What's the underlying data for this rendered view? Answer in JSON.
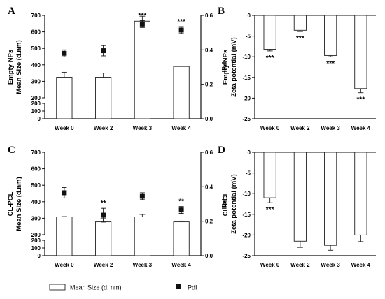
{
  "chart_data": [
    {
      "panel": "A",
      "type": "bar",
      "categories": [
        "Week 0",
        "Week 2",
        "Week 3",
        "Week 4"
      ],
      "ylabel": [
        "Empty NPs",
        "Mean Size (d.nm)"
      ],
      "y2label": "PdI",
      "yticks": [
        0,
        100,
        200,
        300,
        400,
        500,
        600,
        700
      ],
      "y2ticks": [
        0.0,
        0.2,
        0.4,
        0.6
      ],
      "y2lim": [
        0,
        0.6
      ],
      "bars": {
        "name": "Mean Size (d. nm)",
        "values": [
          325,
          325,
          665,
          390
        ],
        "errors": [
          30,
          25,
          30,
          0
        ]
      },
      "markers": {
        "name": "PdI",
        "values": [
          0.38,
          0.395,
          0.55,
          0.515
        ],
        "errors": [
          0.02,
          0.03,
          0.02,
          0.02
        ]
      },
      "annotations": [
        "",
        "",
        "***",
        "***"
      ]
    },
    {
      "panel": "B",
      "type": "bar",
      "categories": [
        "Week 0",
        "Week 2",
        "Week 3",
        "Week 4"
      ],
      "ylabel": [
        "Empty NPs",
        "Zeta potential (mV)"
      ],
      "yticks": [
        0,
        -5,
        -10,
        -15,
        -20,
        -25
      ],
      "ylim": [
        -25,
        0
      ],
      "values": [
        -8.2,
        -3.6,
        -9.7,
        -17.7
      ],
      "errors": [
        0.4,
        0.3,
        0.3,
        1.0
      ],
      "annotations": [
        "***",
        "***",
        "***",
        "***"
      ]
    },
    {
      "panel": "C",
      "type": "bar",
      "categories": [
        "Week 0",
        "Week 2",
        "Week 3",
        "Week 4"
      ],
      "ylabel": [
        "CL-PCL",
        "Mean Size (d.nm)"
      ],
      "y2label": "PdI",
      "yticks": [
        0,
        100,
        200,
        300,
        400,
        500,
        600,
        700
      ],
      "y2ticks": [
        0.0,
        0.2,
        0.4,
        0.6
      ],
      "y2lim": [
        0,
        0.6
      ],
      "bars": {
        "name": "Mean Size (d. nm)",
        "values": [
          308,
          278,
          308,
          278
        ],
        "errors": [
          2,
          20,
          15,
          5
        ]
      },
      "markers": {
        "name": "PdI",
        "values": [
          0.365,
          0.235,
          0.345,
          0.265
        ],
        "errors": [
          0.03,
          0.04,
          0.02,
          0.02
        ]
      },
      "annotations": [
        "",
        "**",
        "",
        "**"
      ]
    },
    {
      "panel": "D",
      "type": "bar",
      "categories": [
        "Week 0",
        "Week 2",
        "Week 3",
        "Week 4"
      ],
      "ylabel": [
        "CL-PCL",
        "Zeta potential (mV)"
      ],
      "yticks": [
        0,
        -5,
        -10,
        -15,
        -20,
        -25
      ],
      "ylim": [
        -25,
        0
      ],
      "values": [
        -11.0,
        -21.5,
        -22.5,
        -20.0
      ],
      "errors": [
        1.2,
        1.5,
        1.2,
        1.6
      ],
      "annotations": [
        "***",
        "",
        "",
        ""
      ]
    }
  ],
  "legend": {
    "bar_label": "Mean Size (d. nm)",
    "marker_label": "PdI"
  }
}
